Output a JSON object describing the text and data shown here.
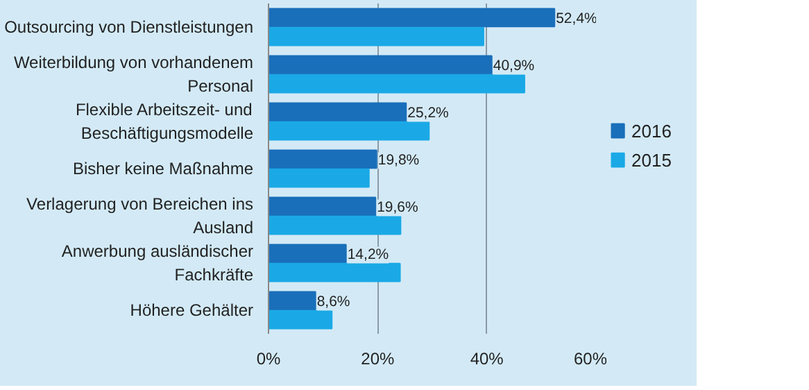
{
  "chart_data": {
    "type": "bar",
    "orientation": "horizontal",
    "categories": [
      "Outsourcing von Dienstleistungen",
      "Weiterbildung von vorhandenem\nPersonal",
      "Flexible Arbeitszeit- und\nBeschäftigungsmodelle",
      "Bisher keine Maßnahme",
      "Verlagerung von Bereichen ins\nAusland",
      "Anwerbung ausländischer\nFachkräfte",
      "Höhere Gehälter"
    ],
    "series": [
      {
        "name": "2016",
        "color": "#1a6fba",
        "values": [
          52.4,
          40.9,
          25.2,
          19.8,
          19.6,
          14.2,
          8.6
        ],
        "value_labels": [
          "52,4%",
          "40,9%",
          "25,2%",
          "19,8%",
          "19,6%",
          "14,2%",
          "8,6%"
        ]
      },
      {
        "name": "2015",
        "color": "#1aa9e6",
        "values": [
          39.4,
          46.9,
          29.4,
          18.4,
          24.2,
          24.1,
          11.6
        ]
      }
    ],
    "xlim": [
      0,
      60
    ],
    "xticks": [
      {
        "value": 0,
        "label": "0%"
      },
      {
        "value": 20,
        "label": "20%"
      },
      {
        "value": 40,
        "label": "40%"
      },
      {
        "value": 60,
        "label": "60%"
      }
    ],
    "grid": "x",
    "legend": "right"
  }
}
